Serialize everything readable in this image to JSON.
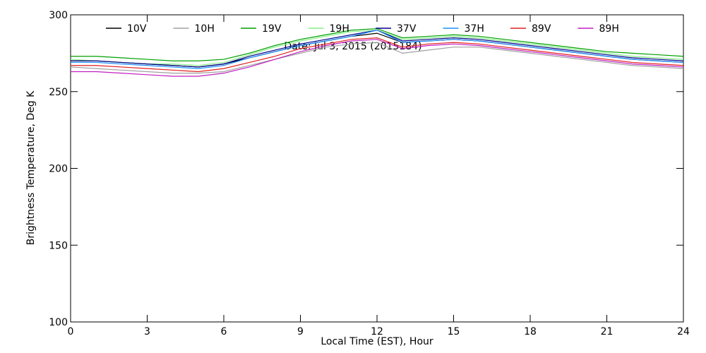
{
  "chart_data": {
    "type": "line",
    "title": "Date: Jul  3, 2015 (2015184)",
    "x_label": "Local Time (EST), Hour",
    "y_label": "Brightness Temperature, Deg K",
    "x": [
      0,
      1,
      2,
      3,
      4,
      5,
      6,
      7,
      8,
      9,
      10,
      11,
      12,
      13,
      14,
      15,
      16,
      17,
      18,
      19,
      20,
      21,
      22,
      23,
      24
    ],
    "series": [
      {
        "name": "10V",
        "color": "#000000",
        "values": [
          270,
          270,
          269,
          268,
          267,
          266,
          268,
          272,
          276,
          280,
          283,
          286,
          288,
          282,
          283,
          284,
          283,
          281,
          279,
          277,
          275,
          273,
          271,
          270,
          269
        ]
      },
      {
        "name": "10H",
        "color": "#a0a0a0",
        "values": [
          266,
          265,
          264,
          263,
          262,
          262,
          263,
          267,
          271,
          275,
          279,
          281,
          282,
          275,
          277,
          279,
          279,
          277,
          275,
          273,
          271,
          269,
          267,
          266,
          265
        ]
      },
      {
        "name": "19V",
        "color": "#00a000",
        "values": [
          273,
          273,
          272,
          271,
          270,
          270,
          271,
          275,
          280,
          284,
          287,
          290,
          291,
          285,
          286,
          287,
          286,
          284,
          282,
          280,
          278,
          276,
          275,
          274,
          273
        ]
      },
      {
        "name": "19H",
        "color": "#88ee88",
        "values": [
          271,
          270,
          269,
          268,
          268,
          267,
          269,
          274,
          279,
          283,
          286,
          289,
          290,
          284,
          285,
          286,
          285,
          283,
          281,
          279,
          277,
          275,
          273,
          272,
          271
        ]
      },
      {
        "name": "37V",
        "color": "#00008b",
        "values": [
          270,
          270,
          269,
          268,
          267,
          266,
          268,
          273,
          277,
          281,
          284,
          287,
          290,
          283,
          284,
          285,
          284,
          282,
          280,
          278,
          276,
          274,
          272,
          271,
          270
        ]
      },
      {
        "name": "37H",
        "color": "#1e90ff",
        "values": [
          269,
          269,
          268,
          267,
          266,
          265,
          267,
          272,
          276,
          280,
          283,
          286,
          290,
          282,
          283,
          284,
          283,
          281,
          279,
          277,
          275,
          273,
          271,
          270,
          269
        ]
      },
      {
        "name": "89V",
        "color": "#e02020",
        "values": [
          267,
          267,
          266,
          265,
          264,
          263,
          265,
          269,
          273,
          278,
          281,
          284,
          285,
          279,
          281,
          282,
          281,
          279,
          277,
          275,
          273,
          271,
          269,
          268,
          267
        ]
      },
      {
        "name": "89H",
        "color": "#c020c0",
        "values": [
          263,
          263,
          262,
          261,
          260,
          260,
          262,
          266,
          271,
          276,
          280,
          283,
          284,
          278,
          280,
          281,
          280,
          278,
          276,
          274,
          272,
          270,
          268,
          267,
          266
        ]
      }
    ],
    "xlim": [
      0,
      24
    ],
    "xticks": [
      0,
      3,
      6,
      9,
      12,
      15,
      18,
      21,
      24
    ],
    "ylim": [
      100,
      300
    ],
    "yticks": [
      100,
      150,
      200,
      250,
      300
    ]
  }
}
